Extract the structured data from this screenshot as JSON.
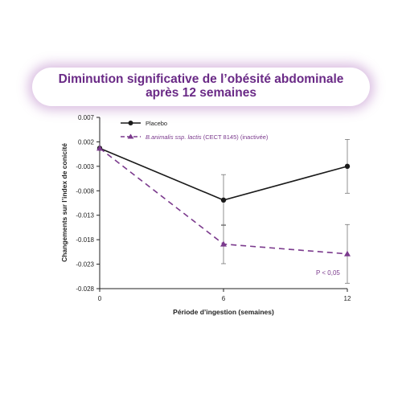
{
  "title": {
    "line1": "Diminution significative de l’obésité abdominale",
    "line2": "après 12 semaines"
  },
  "colors": {
    "title": "#6a2a86",
    "placebo": "#1a1a1a",
    "probiotic": "#7b3a8d",
    "axis": "#222222"
  },
  "chart_data": {
    "type": "line",
    "xlabel": "Période d’ingestion (semaines)",
    "ylabel": "Changements sur l’index de conicité",
    "x": [
      0,
      6,
      12
    ],
    "x_ticks": [
      "0",
      "6",
      "12"
    ],
    "ylim": [
      -0.028,
      0.007
    ],
    "y_ticks": [
      "0.007",
      "0.002",
      "-0.003",
      "-0.008",
      "-0.013",
      "-0.018",
      "-0.023",
      "-0.028"
    ],
    "grid": false,
    "legend_placement": "top-left",
    "series": [
      {
        "name": "Placebo",
        "style": "solid",
        "marker": "circle",
        "color": "#1a1a1a",
        "values": [
          0.0007,
          -0.0099,
          -0.003
        ],
        "error": [
          0,
          0.0052,
          0.0055
        ]
      },
      {
        "name_italic": "B.animalis ssp. lactis",
        "name_rest": " (CECT 8145) (inactivée)",
        "style": "dashed",
        "marker": "triangle",
        "color": "#7b3a8d",
        "values": [
          0.0007,
          -0.0189,
          -0.0209
        ],
        "error": [
          0,
          0.004,
          0.006
        ]
      }
    ],
    "annotation": "P < 0,05"
  }
}
